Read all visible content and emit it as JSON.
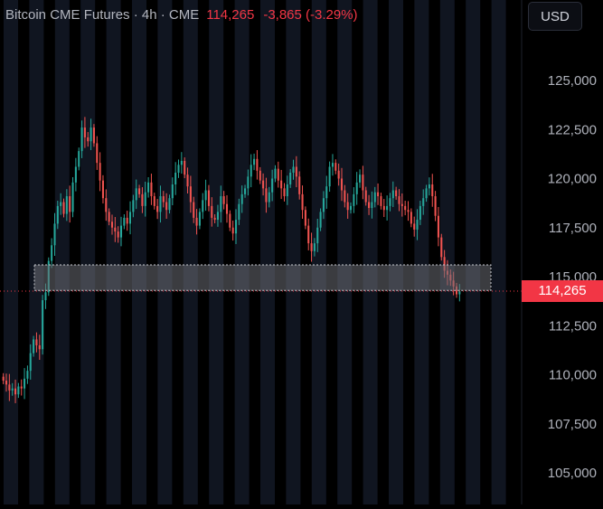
{
  "header": {
    "symbol": "Bitcoin CME Futures · 4h · CME",
    "last_price": "114,265",
    "change": "-3,865 (-3.29%)"
  },
  "currency_button": "USD",
  "price_tag": "114,265",
  "colors": {
    "background": "#000000",
    "up": "#26a69a",
    "down": "#ef5350",
    "session_band": "#101520",
    "axis_text": "#aeb1ba",
    "zone_fill": "#6b6e75",
    "last_price_line": "#f23645"
  },
  "chart_data": {
    "type": "candlestick",
    "symbol": "Bitcoin CME Futures",
    "interval": "4h",
    "exchange": "CME",
    "currency": "USD",
    "ylim": [
      104000,
      129000
    ],
    "y_ticks": [
      105000,
      107500,
      110000,
      112500,
      115000,
      117500,
      120000,
      122500,
      125000
    ],
    "y_tick_labels": [
      "105,000",
      "107,500",
      "110,000",
      "112,500",
      "115,000",
      "117,500",
      "120,000",
      "122,500",
      "125,000"
    ],
    "last_price": 114265,
    "highlight_zone": {
      "low": 114300,
      "high": 115600
    },
    "closes": [
      109700,
      109500,
      109200,
      109300,
      109000,
      109400,
      109300,
      109800,
      110200,
      111100,
      111800,
      111500,
      111300,
      113800,
      114200,
      115800,
      116600,
      117700,
      118600,
      118800,
      118200,
      119100,
      118300,
      119800,
      120600,
      121400,
      122600,
      122100,
      121900,
      122600,
      121800,
      120800,
      119900,
      119000,
      118300,
      117800,
      117500,
      117300,
      117000,
      117600,
      118000,
      117700,
      118300,
      118900,
      119500,
      119200,
      118600,
      119300,
      119800,
      119100,
      118600,
      118300,
      119100,
      118800,
      118400,
      119000,
      119700,
      120300,
      120700,
      120900,
      120200,
      119600,
      118800,
      118000,
      117600,
      118300,
      118900,
      119400,
      118600,
      118000,
      117900,
      118300,
      119100,
      118700,
      118200,
      117500,
      117200,
      117900,
      118700,
      119200,
      119500,
      120100,
      120700,
      121000,
      120400,
      119900,
      119500,
      118800,
      119300,
      120000,
      120500,
      119900,
      119500,
      119100,
      119700,
      120300,
      120600,
      120100,
      119200,
      118400,
      117600,
      116700,
      116300,
      116700,
      117500,
      118300,
      119000,
      119600,
      120600,
      120800,
      120400,
      120000,
      119400,
      118800,
      118400,
      118600,
      119200,
      119800,
      120200,
      119400,
      118800,
      118500,
      118800,
      119300,
      119100,
      118600,
      118400,
      118600,
      119000,
      119400,
      119100,
      118700,
      118600,
      118400,
      118300,
      117700,
      117400,
      117900,
      118600,
      119000,
      119500,
      119700,
      119100,
      118100,
      117000,
      116000,
      115300,
      115100,
      114800,
      114500,
      114100,
      114265
    ]
  }
}
